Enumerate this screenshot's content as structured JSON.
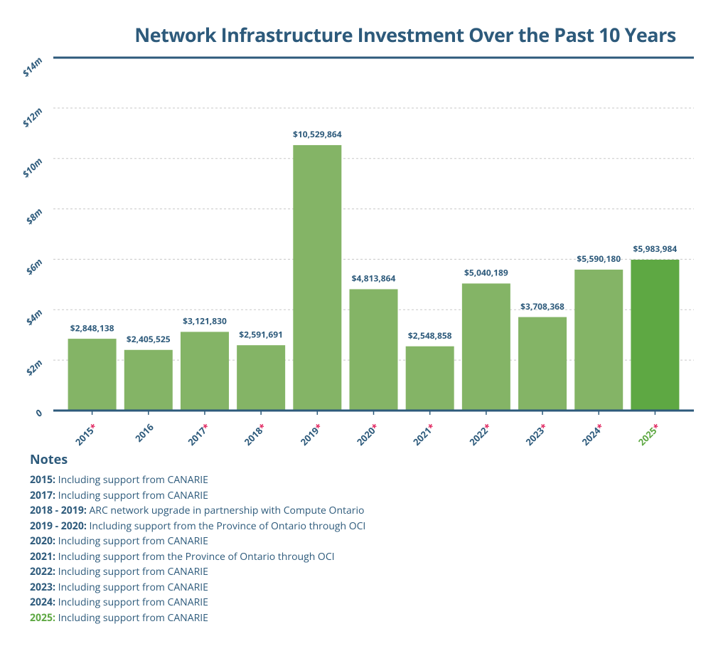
{
  "chart_data": {
    "type": "bar",
    "title": "Network Infrastructure Investment Over the Past 10 Years",
    "categories": [
      "2015",
      "2016",
      "2017",
      "2018",
      "2019",
      "2020",
      "2021",
      "2022",
      "2023",
      "2024",
      "2025"
    ],
    "marker": "*",
    "marked": [
      true,
      false,
      true,
      true,
      true,
      true,
      true,
      true,
      true,
      true,
      true
    ],
    "values": [
      2848138,
      2405525,
      3121830,
      2591691,
      10529864,
      4813864,
      2548858,
      5040189,
      3708368,
      5590180,
      5983984
    ],
    "value_labels": [
      "$2,848,138",
      "$2,405,525",
      "$3,121,830",
      "$2,591,691",
      "$10,529,864",
      "$4,813,864",
      "$2,548,858",
      "$5,040,189",
      "$3,708,368",
      "$5,590,180",
      "$5,983,984"
    ],
    "colors": [
      "#84b466",
      "#84b466",
      "#84b466",
      "#84b466",
      "#84b466",
      "#84b466",
      "#84b466",
      "#84b466",
      "#84b466",
      "#84b466",
      "#5ea843"
    ],
    "label_colors": [
      "#2d5a7b",
      "#2d5a7b",
      "#2d5a7b",
      "#2d5a7b",
      "#2d5a7b",
      "#2d5a7b",
      "#2d5a7b",
      "#2d5a7b",
      "#2d5a7b",
      "#2d5a7b",
      "#5ea843"
    ],
    "marker_color": "#e0245e",
    "ylim": [
      0,
      14000000
    ],
    "yticks": [
      0,
      {
        "value": 2000000,
        "label": "$2m"
      },
      {
        "value": 4000000,
        "label": "$4m"
      },
      {
        "value": 6000000,
        "label": "$6m"
      },
      {
        "value": 8000000,
        "label": "$8m"
      },
      {
        "value": 10000000,
        "label": "$10m"
      },
      {
        "value": 12000000,
        "label": "$12m"
      },
      {
        "value": 14000000,
        "label": "$14m"
      }
    ],
    "grid": true
  },
  "notes": {
    "title": "Notes",
    "items": [
      {
        "label": "2015:",
        "text": "Including support from CANARIE",
        "color": "#2d5a7b"
      },
      {
        "label": "2017:",
        "text": "Including support from CANARIE",
        "color": "#2d5a7b"
      },
      {
        "label": "2018 - 2019:",
        "text": "ARC network upgrade in partnership with Compute Ontario",
        "color": "#2d5a7b"
      },
      {
        "label": "2019 - 2020:",
        "text": "Including support from the Province of Ontario through OCI",
        "color": "#2d5a7b"
      },
      {
        "label": "2020:",
        "text": "Including support from CANARIE",
        "color": "#2d5a7b"
      },
      {
        "label": "2021:",
        "text": "Including support from the Province of Ontario through OCI",
        "color": "#2d5a7b"
      },
      {
        "label": "2022:",
        "text": "Including support from CANARIE",
        "color": "#2d5a7b"
      },
      {
        "label": "2023:",
        "text": "Including support from CANARIE",
        "color": "#2d5a7b"
      },
      {
        "label": "2024:",
        "text": "Including support from CANARIE",
        "color": "#2d5a7b"
      },
      {
        "label": "2025:",
        "text": "Including support from CANARIE",
        "color": "#5ea843"
      }
    ]
  }
}
